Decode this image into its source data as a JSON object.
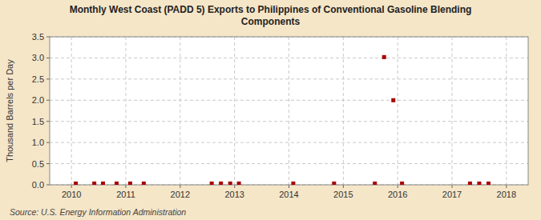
{
  "chart_data": {
    "type": "scatter",
    "title": "Monthly West Coast (PADD 5) Exports to Philippines of Conventional Gasoline Blending\nComponents",
    "y_label": "Thousand Barrels per Day",
    "source": "Source: U.S. Energy Information Administration",
    "x": [
      2010.08,
      2010.42,
      2010.58,
      2010.83,
      2011.08,
      2011.33,
      2012.58,
      2012.75,
      2012.92,
      2013.08,
      2014.08,
      2014.83,
      2015.58,
      2015.75,
      2015.92,
      2016.08,
      2017.33,
      2017.5,
      2017.67
    ],
    "values": [
      0.03,
      0.03,
      0.03,
      0.03,
      0.03,
      0.03,
      0.03,
      0.03,
      0.03,
      0.03,
      0.03,
      0.03,
      0.03,
      3.02,
      2.0,
      0.03,
      0.03,
      0.03,
      0.03
    ],
    "color": "#aa0000",
    "marker": "square",
    "xlim": [
      2009.6,
      2018.4
    ],
    "ylim": [
      0,
      3.5
    ],
    "xticks": [
      2010,
      2011,
      2012,
      2013,
      2014,
      2015,
      2016,
      2017,
      2018
    ],
    "yticks": [
      {
        "value": 0.0,
        "label": "0.0"
      },
      0.5,
      {
        "value": 1.0,
        "label": "1.0"
      },
      1.5,
      {
        "value": 2.0,
        "label": "2.0"
      },
      2.5,
      {
        "value": 3.0,
        "label": "3.0"
      },
      3.5
    ],
    "grid": true
  }
}
